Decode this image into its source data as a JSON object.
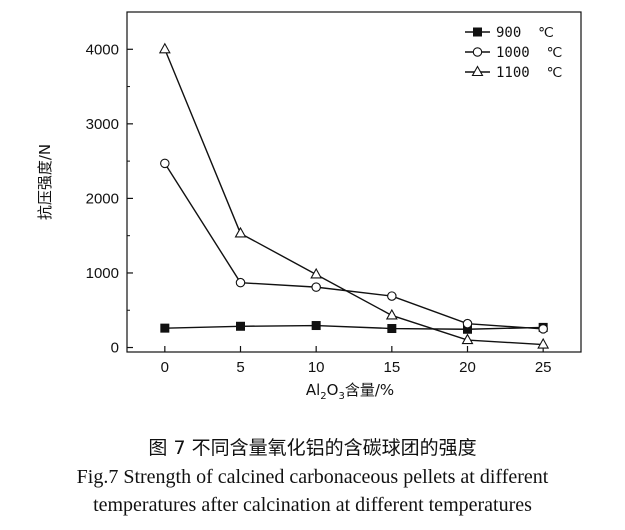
{
  "chart_data": {
    "type": "line",
    "xlabel": "Al₂O₃含量/%",
    "xlabel_parts": [
      "Al",
      "2",
      "O",
      "3",
      "含量/%"
    ],
    "ylabel": "抗压强度/N",
    "x": [
      0,
      5,
      10,
      15,
      20,
      25
    ],
    "xticks": [
      "0",
      "5",
      "10",
      "15",
      "20",
      "25"
    ],
    "yticks": [
      "0",
      "1000",
      "2000",
      "3000",
      "4000"
    ],
    "xlim": [
      -2.5,
      27.5
    ],
    "ylim": [
      -60,
      4500
    ],
    "legend_position": "top-right",
    "series": [
      {
        "name": "900  ℃",
        "marker": "square-filled",
        "values": [
          260,
          285,
          295,
          255,
          245,
          270
        ]
      },
      {
        "name": "1000  ℃",
        "marker": "circle-open",
        "values": [
          2470,
          870,
          810,
          690,
          320,
          250
        ]
      },
      {
        "name": "1100  ℃",
        "marker": "triangle-open",
        "values": [
          4000,
          1530,
          980,
          430,
          100,
          40
        ]
      }
    ]
  },
  "caption": {
    "cn": "图 7   不同含量氧化铝的含碳球团的强度",
    "en_line1": "Fig.7   Strength of calcined carbonaceous pellets at different",
    "en_line2": "temperatures after calcination at different temperatures"
  }
}
